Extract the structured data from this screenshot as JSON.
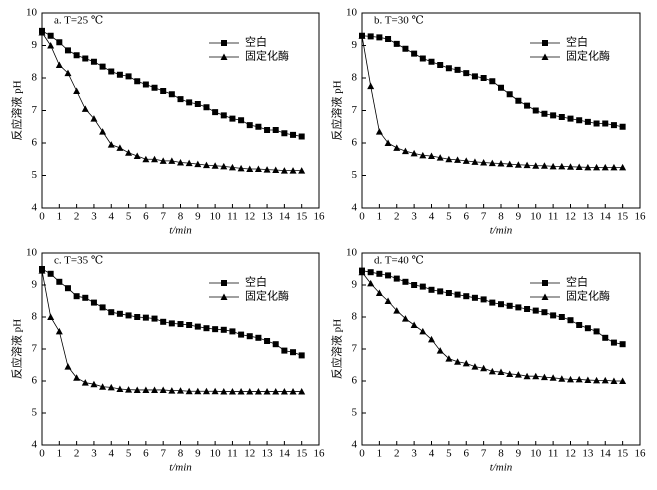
{
  "chart_data": [
    {
      "type": "line",
      "title": "a. T=25 ℃",
      "xlabel": "t/min",
      "ylabel": "反应溶液 pH",
      "x": [
        0,
        0.5,
        1,
        1.5,
        2,
        2.5,
        3,
        3.5,
        4,
        4.5,
        5,
        5.5,
        6,
        6.5,
        7,
        7.5,
        8,
        8.5,
        9,
        9.5,
        10,
        10.5,
        11,
        11.5,
        12,
        12.5,
        13,
        13.5,
        14,
        14.5,
        15
      ],
      "series": [
        {
          "name": "空白",
          "color": "#000000",
          "marker": "square",
          "values": [
            9.45,
            9.3,
            9.1,
            8.85,
            8.7,
            8.6,
            8.5,
            8.35,
            8.2,
            8.1,
            8.05,
            7.9,
            7.8,
            7.7,
            7.6,
            7.5,
            7.35,
            7.25,
            7.2,
            7.1,
            6.95,
            6.85,
            6.75,
            6.7,
            6.55,
            6.5,
            6.4,
            6.4,
            6.3,
            6.25,
            6.2
          ]
        },
        {
          "name": "固定化酶",
          "color": "#000000",
          "marker": "triangle",
          "values": [
            9.4,
            9.0,
            8.4,
            8.15,
            7.6,
            7.05,
            6.75,
            6.35,
            5.95,
            5.85,
            5.7,
            5.6,
            5.5,
            5.5,
            5.45,
            5.45,
            5.4,
            5.38,
            5.35,
            5.32,
            5.3,
            5.28,
            5.25,
            5.22,
            5.2,
            5.2,
            5.18,
            5.17,
            5.15,
            5.15,
            5.15
          ]
        }
      ],
      "xlim": [
        0,
        16
      ],
      "xticks": [
        0,
        1,
        2,
        3,
        4,
        5,
        6,
        7,
        8,
        9,
        10,
        11,
        12,
        13,
        14,
        15,
        16
      ],
      "ylim": [
        4,
        10
      ],
      "yticks": [
        4,
        5,
        6,
        7,
        8,
        9,
        10
      ],
      "legend": "upper right"
    },
    {
      "type": "line",
      "title": "b. T=30 ℃",
      "xlabel": "t/min",
      "ylabel": "反应溶液 pH",
      "x": [
        0,
        0.5,
        1,
        1.5,
        2,
        2.5,
        3,
        3.5,
        4,
        4.5,
        5,
        5.5,
        6,
        6.5,
        7,
        7.5,
        8,
        8.5,
        9,
        9.5,
        10,
        10.5,
        11,
        11.5,
        12,
        12.5,
        13,
        13.5,
        14,
        14.5,
        15
      ],
      "series": [
        {
          "name": "空白",
          "color": "#000000",
          "marker": "square",
          "values": [
            9.3,
            9.28,
            9.25,
            9.2,
            9.05,
            8.9,
            8.75,
            8.6,
            8.5,
            8.4,
            8.3,
            8.25,
            8.15,
            8.05,
            8.0,
            7.9,
            7.7,
            7.5,
            7.3,
            7.15,
            7.0,
            6.9,
            6.85,
            6.8,
            6.75,
            6.7,
            6.65,
            6.6,
            6.6,
            6.55,
            6.5
          ]
        },
        {
          "name": "固定化酶",
          "color": "#000000",
          "marker": "triangle",
          "values": [
            9.3,
            7.75,
            6.35,
            6.0,
            5.85,
            5.75,
            5.68,
            5.62,
            5.6,
            5.55,
            5.5,
            5.48,
            5.45,
            5.42,
            5.4,
            5.38,
            5.37,
            5.35,
            5.33,
            5.32,
            5.3,
            5.3,
            5.28,
            5.28,
            5.27,
            5.26,
            5.25,
            5.25,
            5.25,
            5.25,
            5.25
          ]
        }
      ],
      "xlim": [
        0,
        16
      ],
      "xticks": [
        0,
        1,
        2,
        3,
        4,
        5,
        6,
        7,
        8,
        9,
        10,
        11,
        12,
        13,
        14,
        15,
        16
      ],
      "ylim": [
        4,
        10
      ],
      "yticks": [
        4,
        5,
        6,
        7,
        8,
        9,
        10
      ],
      "legend": "upper right"
    },
    {
      "type": "line",
      "title": "c. T=35 ℃",
      "xlabel": "t/min",
      "ylabel": "反应溶液 pH",
      "x": [
        0,
        0.5,
        1,
        1.5,
        2,
        2.5,
        3,
        3.5,
        4,
        4.5,
        5,
        5.5,
        6,
        6.5,
        7,
        7.5,
        8,
        8.5,
        9,
        9.5,
        10,
        10.5,
        11,
        11.5,
        12,
        12.5,
        13,
        13.5,
        14,
        14.5,
        15
      ],
      "series": [
        {
          "name": "空白",
          "color": "#000000",
          "marker": "square",
          "values": [
            9.5,
            9.35,
            9.1,
            8.9,
            8.65,
            8.6,
            8.45,
            8.3,
            8.15,
            8.1,
            8.05,
            8.0,
            7.98,
            7.95,
            7.85,
            7.8,
            7.78,
            7.75,
            7.7,
            7.65,
            7.62,
            7.6,
            7.55,
            7.45,
            7.4,
            7.35,
            7.25,
            7.15,
            6.95,
            6.9,
            6.8
          ]
        },
        {
          "name": "固定化酶",
          "color": "#000000",
          "marker": "triangle",
          "values": [
            9.45,
            8.0,
            7.55,
            6.45,
            6.1,
            5.95,
            5.9,
            5.82,
            5.8,
            5.75,
            5.73,
            5.72,
            5.72,
            5.72,
            5.72,
            5.7,
            5.7,
            5.68,
            5.68,
            5.68,
            5.68,
            5.67,
            5.67,
            5.67,
            5.67,
            5.67,
            5.67,
            5.67,
            5.67,
            5.67,
            5.67
          ]
        }
      ],
      "xlim": [
        0,
        16
      ],
      "xticks": [
        0,
        1,
        2,
        3,
        4,
        5,
        6,
        7,
        8,
        9,
        10,
        11,
        12,
        13,
        14,
        15,
        16
      ],
      "ylim": [
        4,
        10
      ],
      "yticks": [
        4,
        5,
        6,
        7,
        8,
        9,
        10
      ],
      "legend": "upper right"
    },
    {
      "type": "line",
      "title": "d. T=40 ℃",
      "xlabel": "t/min",
      "ylabel": "反应溶液 pH",
      "x": [
        0,
        0.5,
        1,
        1.5,
        2,
        2.5,
        3,
        3.5,
        4,
        4.5,
        5,
        5.5,
        6,
        6.5,
        7,
        7.5,
        8,
        8.5,
        9,
        9.5,
        10,
        10.5,
        11,
        11.5,
        12,
        12.5,
        13,
        13.5,
        14,
        14.5,
        15
      ],
      "series": [
        {
          "name": "空白",
          "color": "#000000",
          "marker": "square",
          "values": [
            9.45,
            9.4,
            9.35,
            9.3,
            9.2,
            9.1,
            9.0,
            8.95,
            8.85,
            8.8,
            8.75,
            8.7,
            8.65,
            8.6,
            8.55,
            8.45,
            8.4,
            8.35,
            8.3,
            8.25,
            8.2,
            8.15,
            8.05,
            8.0,
            7.9,
            7.75,
            7.65,
            7.55,
            7.35,
            7.2,
            7.15
          ]
        },
        {
          "name": "固定化酶",
          "color": "#000000",
          "marker": "triangle",
          "values": [
            9.4,
            9.05,
            8.75,
            8.5,
            8.2,
            7.95,
            7.75,
            7.55,
            7.3,
            6.95,
            6.7,
            6.6,
            6.55,
            6.45,
            6.4,
            6.3,
            6.28,
            6.22,
            6.2,
            6.15,
            6.15,
            6.12,
            6.1,
            6.07,
            6.05,
            6.05,
            6.03,
            6.02,
            6.02,
            6.0,
            6.0
          ]
        }
      ],
      "xlim": [
        0,
        16
      ],
      "xticks": [
        0,
        1,
        2,
        3,
        4,
        5,
        6,
        7,
        8,
        9,
        10,
        11,
        12,
        13,
        14,
        15,
        16
      ],
      "ylim": [
        4,
        10
      ],
      "yticks": [
        4,
        5,
        6,
        7,
        8,
        9,
        10
      ],
      "legend": "upper right"
    }
  ]
}
